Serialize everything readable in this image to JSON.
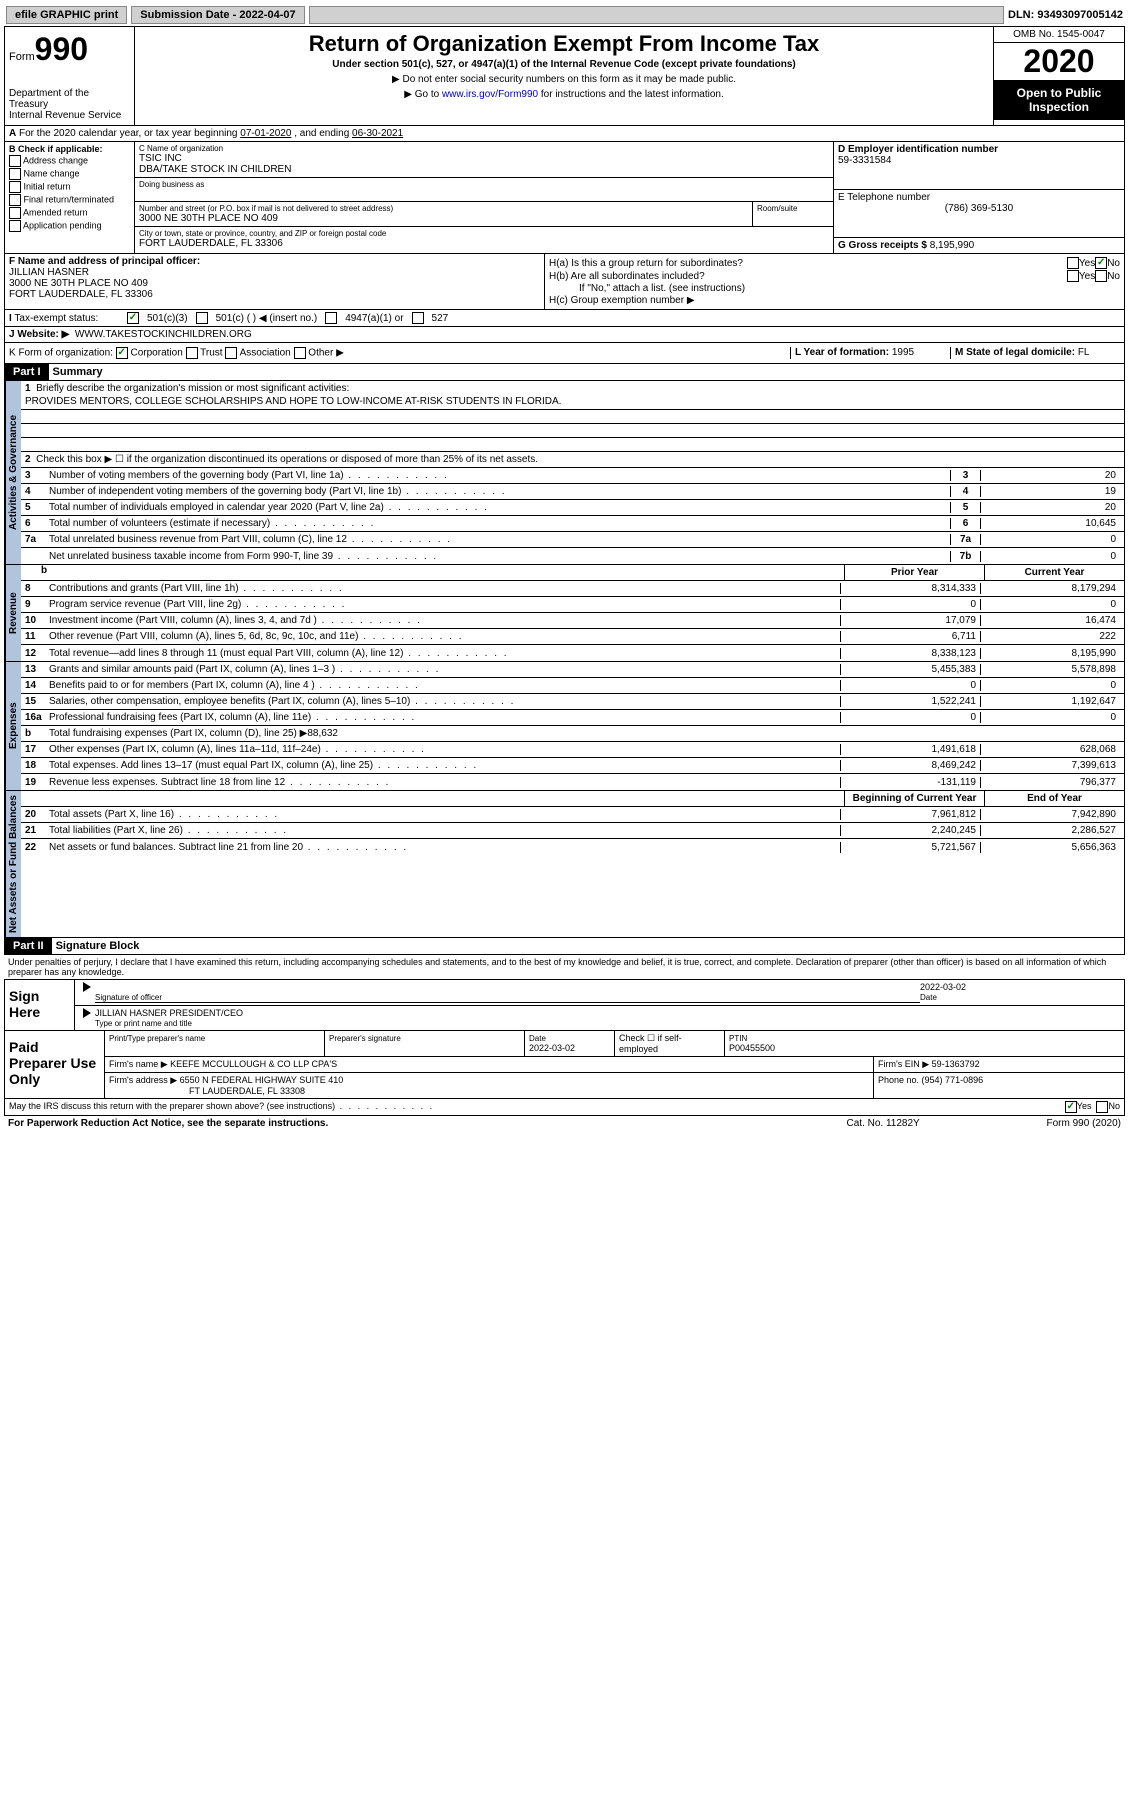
{
  "topbar": {
    "efile": "efile GRAPHIC print",
    "sub_lbl": "Submission Date - ",
    "sub_date": "2022-04-07",
    "dln_lbl": "DLN: ",
    "dln": "93493097005142"
  },
  "header": {
    "form_word": "Form",
    "form_num": "990",
    "dept": "Department of the Treasury\nInternal Revenue Service",
    "title": "Return of Organization Exempt From Income Tax",
    "sub": "Under section 501(c), 527, or 4947(a)(1) of the Internal Revenue Code (except private foundations)",
    "arrow1": "Do not enter social security numbers on this form as it may be made public.",
    "arrow2_pre": "Go to ",
    "arrow2_link": "www.irs.gov/Form990",
    "arrow2_post": " for instructions and the latest information.",
    "omb": "OMB No. 1545-0047",
    "year": "2020",
    "open_pub": "Open to Public Inspection"
  },
  "period": {
    "text": "For the 2020 calendar year, or tax year beginning ",
    "begin": "07-01-2020",
    "mid": " , and ending ",
    "end": "06-30-2021"
  },
  "checkB": {
    "hdr": "B Check if applicable:",
    "items": [
      "Address change",
      "Name change",
      "Initial return",
      "Final return/terminated",
      "Amended return",
      "Application pending"
    ]
  },
  "org": {
    "name_lbl": "C Name of organization",
    "name": "TSIC INC",
    "dba": "DBA/TAKE STOCK IN CHILDREN",
    "dba_lbl": "Doing business as",
    "addr_lbl": "Number and street (or P.O. box if mail is not delivered to street address)",
    "room_lbl": "Room/suite",
    "addr": "3000 NE 30TH PLACE NO 409",
    "city_lbl": "City or town, state or province, country, and ZIP or foreign postal code",
    "city": "FORT LAUDERDALE, FL  33306"
  },
  "ein": {
    "lbl": "D Employer identification number",
    "val": "59-3331584"
  },
  "phone": {
    "lbl": "E Telephone number",
    "val": "(786) 369-5130"
  },
  "gross": {
    "lbl": "G Gross receipts $ ",
    "val": "8,195,990"
  },
  "principal": {
    "lbl": "F  Name and address of principal officer:",
    "name": "JILLIAN HASNER",
    "addr1": "3000 NE 30TH PLACE NO 409",
    "addr2": "FORT LAUDERDALE, FL  33306"
  },
  "ha": {
    "a": "H(a)  Is this a group return for subordinates?",
    "b": "H(b)  Are all subordinates included?",
    "note": "If \"No,\" attach a list. (see instructions)",
    "c": "H(c)  Group exemption number ▶"
  },
  "tax": {
    "lbl": "Tax-exempt status:",
    "o1": "501(c)(3)",
    "o2": "501(c) (  ) ◀ (insert no.)",
    "o3": "4947(a)(1) or",
    "o4": "527"
  },
  "website": {
    "lbl": "J    Website: ▶",
    "val": "WWW.TAKESTOCKINCHILDREN.ORG"
  },
  "k": {
    "lbl": "K Form of organization:",
    "opts": [
      "Corporation",
      "Trust",
      "Association",
      "Other ▶"
    ],
    "l_lbl": "L Year of formation: ",
    "l_val": "1995",
    "m_lbl": "M State of legal domicile: ",
    "m_val": "FL"
  },
  "part1": {
    "hdr": "Part I",
    "title": "Summary",
    "side_gov": "Activities & Governance",
    "side_rev": "Revenue",
    "side_exp": "Expenses",
    "side_net": "Net Assets or Fund Balances",
    "q1": "Briefly describe the organization's mission or most significant activities:",
    "mission": "PROVIDES MENTORS, COLLEGE SCHOLARSHIPS AND HOPE TO LOW-INCOME AT-RISK STUDENTS IN FLORIDA.",
    "q2": "Check this box ▶ ☐  if the organization discontinued its operations or disposed of more than 25% of its net assets.",
    "lines_gov": [
      {
        "n": "3",
        "d": "Number of voting members of the governing body (Part VI, line 1a)",
        "b": "3",
        "v": "20"
      },
      {
        "n": "4",
        "d": "Number of independent voting members of the governing body (Part VI, line 1b)",
        "b": "4",
        "v": "19"
      },
      {
        "n": "5",
        "d": "Total number of individuals employed in calendar year 2020 (Part V, line 2a)",
        "b": "5",
        "v": "20"
      },
      {
        "n": "6",
        "d": "Total number of volunteers (estimate if necessary)",
        "b": "6",
        "v": "10,645"
      },
      {
        "n": "7a",
        "d": "Total unrelated business revenue from Part VIII, column (C), line 12",
        "b": "7a",
        "v": "0"
      },
      {
        "n": "",
        "d": "Net unrelated business taxable income from Form 990-T, line 39",
        "b": "7b",
        "v": "0"
      }
    ],
    "col_prior": "Prior Year",
    "col_curr": "Current Year",
    "lines_rev": [
      {
        "n": "8",
        "d": "Contributions and grants (Part VIII, line 1h)",
        "p": "8,314,333",
        "c": "8,179,294"
      },
      {
        "n": "9",
        "d": "Program service revenue (Part VIII, line 2g)",
        "p": "0",
        "c": "0"
      },
      {
        "n": "10",
        "d": "Investment income (Part VIII, column (A), lines 3, 4, and 7d )",
        "p": "17,079",
        "c": "16,474"
      },
      {
        "n": "11",
        "d": "Other revenue (Part VIII, column (A), lines 5, 6d, 8c, 9c, 10c, and 11e)",
        "p": "6,711",
        "c": "222"
      },
      {
        "n": "12",
        "d": "Total revenue—add lines 8 through 11 (must equal Part VIII, column (A), line 12)",
        "p": "8,338,123",
        "c": "8,195,990"
      }
    ],
    "lines_exp": [
      {
        "n": "13",
        "d": "Grants and similar amounts paid (Part IX, column (A), lines 1–3 )",
        "p": "5,455,383",
        "c": "5,578,898"
      },
      {
        "n": "14",
        "d": "Benefits paid to or for members (Part IX, column (A), line 4 )",
        "p": "0",
        "c": "0"
      },
      {
        "n": "15",
        "d": "Salaries, other compensation, employee benefits (Part IX, column (A), lines 5–10)",
        "p": "1,522,241",
        "c": "1,192,647"
      },
      {
        "n": "16a",
        "d": "Professional fundraising fees (Part IX, column (A), line 11e)",
        "p": "0",
        "c": "0"
      },
      {
        "n": "b",
        "d": "Total fundraising expenses (Part IX, column (D), line 25) ▶88,632",
        "p": "",
        "c": ""
      },
      {
        "n": "17",
        "d": "Other expenses (Part IX, column (A), lines 11a–11d, 11f–24e)",
        "p": "1,491,618",
        "c": "628,068"
      },
      {
        "n": "18",
        "d": "Total expenses. Add lines 13–17 (must equal Part IX, column (A), line 25)",
        "p": "8,469,242",
        "c": "7,399,613"
      },
      {
        "n": "19",
        "d": "Revenue less expenses. Subtract line 18 from line 12",
        "p": "-131,119",
        "c": "796,377"
      }
    ],
    "col_begin": "Beginning of Current Year",
    "col_end": "End of Year",
    "lines_net": [
      {
        "n": "20",
        "d": "Total assets (Part X, line 16)",
        "p": "7,961,812",
        "c": "7,942,890"
      },
      {
        "n": "21",
        "d": "Total liabilities (Part X, line 26)",
        "p": "2,240,245",
        "c": "2,286,527"
      },
      {
        "n": "22",
        "d": "Net assets or fund balances. Subtract line 21 from line 20",
        "p": "5,721,567",
        "c": "5,656,363"
      }
    ]
  },
  "part2": {
    "hdr": "Part II",
    "title": "Signature Block",
    "text": "Under penalties of perjury, I declare that I have examined this return, including accompanying schedules and statements, and to the best of my knowledge and belief, it is true, correct, and complete. Declaration of preparer (other than officer) is based on all information of which preparer has any knowledge.",
    "sign_here": "Sign Here",
    "sig_officer": "Signature of officer",
    "sig_date_lbl": "Date",
    "sig_date": "2022-03-02",
    "sig_name": "JILLIAN HASNER PRESIDENT/CEO",
    "sig_type": "Type or print name and title",
    "paid": "Paid Preparer Use Only",
    "prep_name_lbl": "Print/Type preparer's name",
    "prep_sig_lbl": "Preparer's signature",
    "prep_date_lbl": "Date",
    "prep_date": "2022-03-02",
    "prep_check": "Check ☐ if self-employed",
    "ptin_lbl": "PTIN",
    "ptin": "P00455500",
    "firm_name_lbl": "Firm's name   ▶ ",
    "firm_name": "KEEFE MCCULLOUGH & CO LLP CPA'S",
    "firm_ein_lbl": "Firm's EIN ▶ ",
    "firm_ein": "59-1363792",
    "firm_addr_lbl": "Firm's address ▶ ",
    "firm_addr1": "6550 N FEDERAL HIGHWAY SUITE 410",
    "firm_addr2": "FT LAUDERDALE, FL  33308",
    "firm_phone_lbl": "Phone no. ",
    "firm_phone": "(954) 771-0896",
    "discuss": "May the IRS discuss this return with the preparer shown above? (see instructions)"
  },
  "footer": {
    "left": "For Paperwork Reduction Act Notice, see the separate instructions.",
    "mid": "Cat. No. 11282Y",
    "right": "Form 990 (2020)"
  },
  "labels": {
    "yes": "Yes",
    "no": "No"
  }
}
